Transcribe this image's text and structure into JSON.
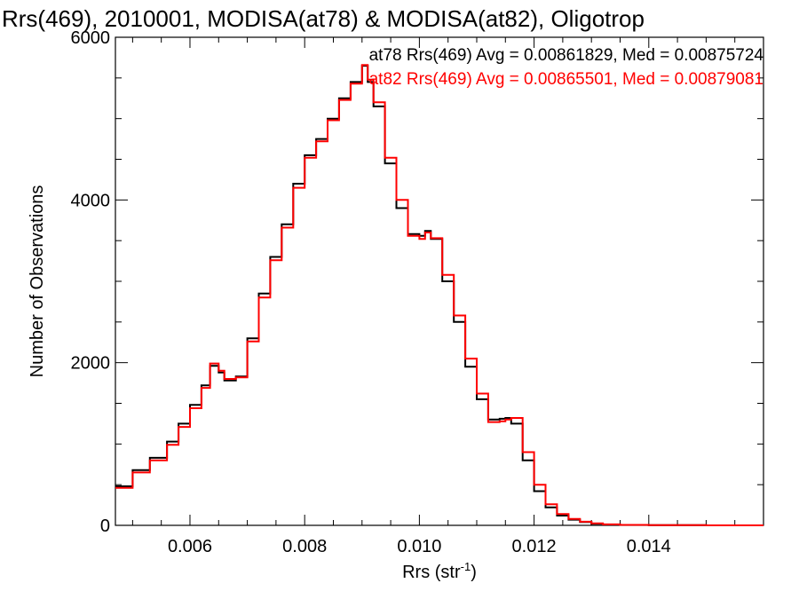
{
  "chart_data": {
    "type": "line",
    "title": "Rrs(469), 2010001, MODISA(at78) & MODISA(at82), Oligotrop",
    "xlabel": "Rrs (str",
    "xlabel_sup": "-1",
    "xlabel_close": ")",
    "ylabel": "Number of Observations",
    "xlim": [
      0.0047,
      0.016
    ],
    "ylim": [
      0,
      6000
    ],
    "xticks": [
      0.006,
      0.008,
      0.01,
      0.012,
      0.014
    ],
    "xtick_labels": [
      "0.006",
      "0.008",
      "0.010",
      "0.012",
      "0.014"
    ],
    "yticks": [
      0,
      2000,
      4000,
      6000
    ],
    "ytick_labels": [
      "0",
      "2000",
      "4000",
      "6000"
    ],
    "grid": false,
    "legend_position": "top-right",
    "series": [
      {
        "name": "at78",
        "color": "#000000",
        "annotation": "at78 Rrs(469) Avg = 0.00861829, Med = 0.00875724",
        "x": [
          0.0047,
          0.005,
          0.0053,
          0.0056,
          0.0058,
          0.006,
          0.0062,
          0.00635,
          0.0065,
          0.0066,
          0.0068,
          0.007,
          0.0072,
          0.0074,
          0.0076,
          0.0078,
          0.008,
          0.0082,
          0.0084,
          0.0086,
          0.0088,
          0.009,
          0.0091,
          0.0092,
          0.0094,
          0.0096,
          0.0098,
          0.01,
          0.0101,
          0.0102,
          0.0104,
          0.0106,
          0.0108,
          0.011,
          0.0112,
          0.0114,
          0.0115,
          0.0116,
          0.0118,
          0.012,
          0.0122,
          0.0124,
          0.0126,
          0.0128,
          0.013,
          0.0132,
          0.0135,
          0.014,
          0.015,
          0.016
        ],
        "y": [
          480,
          680,
          830,
          1030,
          1250,
          1480,
          1720,
          1960,
          1880,
          1780,
          1830,
          2300,
          2850,
          3300,
          3700,
          4200,
          4550,
          4750,
          5000,
          5250,
          5450,
          5650,
          5450,
          5150,
          4450,
          3900,
          3580,
          3560,
          3620,
          3520,
          3000,
          2500,
          1950,
          1550,
          1300,
          1310,
          1320,
          1250,
          800,
          420,
          220,
          120,
          70,
          40,
          20,
          10,
          5,
          2,
          0,
          0
        ]
      },
      {
        "name": "at82",
        "color": "#ff0000",
        "annotation": "at82 Rrs(469) Avg = 0.00865501, Med = 0.00879081",
        "x": [
          0.0047,
          0.005,
          0.0053,
          0.0056,
          0.0058,
          0.006,
          0.0062,
          0.00635,
          0.0065,
          0.0066,
          0.0068,
          0.007,
          0.0072,
          0.0074,
          0.0076,
          0.0078,
          0.008,
          0.0082,
          0.0084,
          0.0086,
          0.0088,
          0.009,
          0.0091,
          0.0092,
          0.0094,
          0.0096,
          0.0098,
          0.01,
          0.0101,
          0.0102,
          0.0104,
          0.0106,
          0.0108,
          0.011,
          0.0112,
          0.0114,
          0.0115,
          0.0116,
          0.0118,
          0.012,
          0.0122,
          0.0124,
          0.0126,
          0.0128,
          0.013,
          0.0132,
          0.0135,
          0.014,
          0.015,
          0.016
        ],
        "y": [
          460,
          650,
          800,
          990,
          1210,
          1440,
          1690,
          1990,
          1900,
          1800,
          1820,
          2260,
          2800,
          3260,
          3660,
          4150,
          4520,
          4720,
          4980,
          5230,
          5430,
          5660,
          5480,
          5200,
          4520,
          4000,
          3560,
          3520,
          3600,
          3530,
          3080,
          2580,
          2050,
          1620,
          1270,
          1280,
          1300,
          1320,
          900,
          500,
          260,
          140,
          80,
          45,
          25,
          12,
          6,
          2,
          0,
          0
        ]
      }
    ]
  }
}
